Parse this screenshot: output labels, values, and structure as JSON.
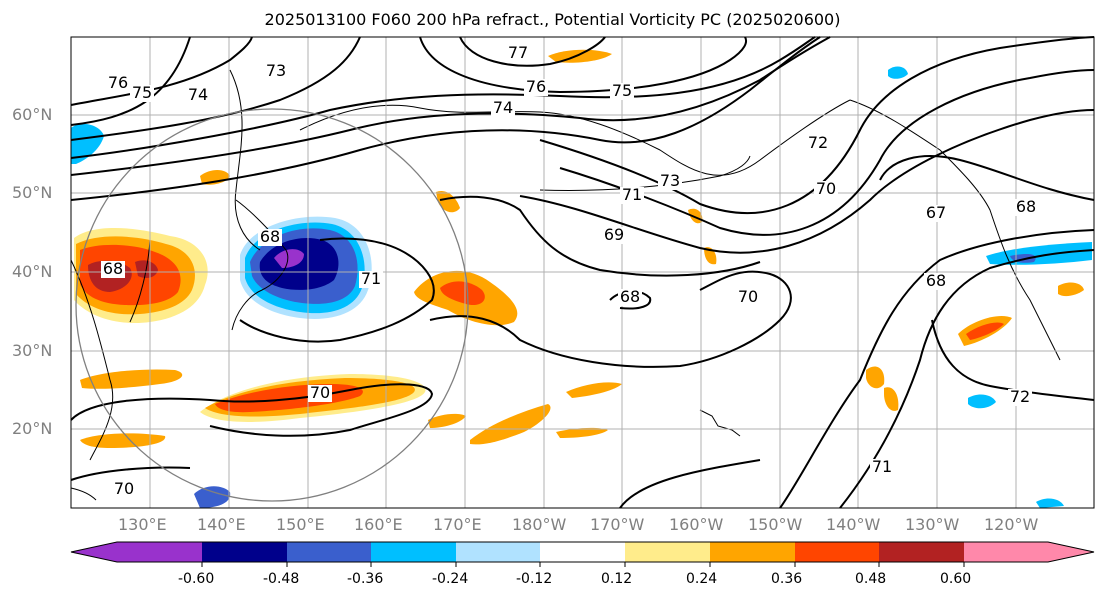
{
  "title": "2025013100 F060 200 hPa refract., Potential Vorticity PC (2025020600)",
  "lat_labels": [
    "60°N",
    "50°N",
    "40°N",
    "30°N",
    "20°N"
  ],
  "lon_labels": [
    "130°E",
    "140°E",
    "150°E",
    "160°E",
    "170°E",
    "180°W",
    "170°W",
    "160°W",
    "150°W",
    "140°W",
    "130°W",
    "120°W"
  ],
  "contour_labels": [
    "76",
    "75",
    "74",
    "73",
    "77",
    "76",
    "75",
    "74",
    "72",
    "73",
    "71",
    "70",
    "69",
    "67",
    "68",
    "68",
    "68",
    "70",
    "68",
    "71",
    "70",
    "72",
    "71",
    "70",
    "68"
  ],
  "colorbar": {
    "colors": [
      "#9932cc",
      "#00008b",
      "#3a5fcd",
      "#00bfff",
      "#b0e2ff",
      "#ffffff",
      "#ffec8b",
      "#ffa500",
      "#ff4500",
      "#b22222",
      "#ff88aa"
    ],
    "tick_labels": [
      "-0.60",
      "-0.48",
      "-0.36",
      "-0.24",
      "-0.12",
      "0.12",
      "0.24",
      "0.36",
      "0.48",
      "0.60"
    ]
  }
}
